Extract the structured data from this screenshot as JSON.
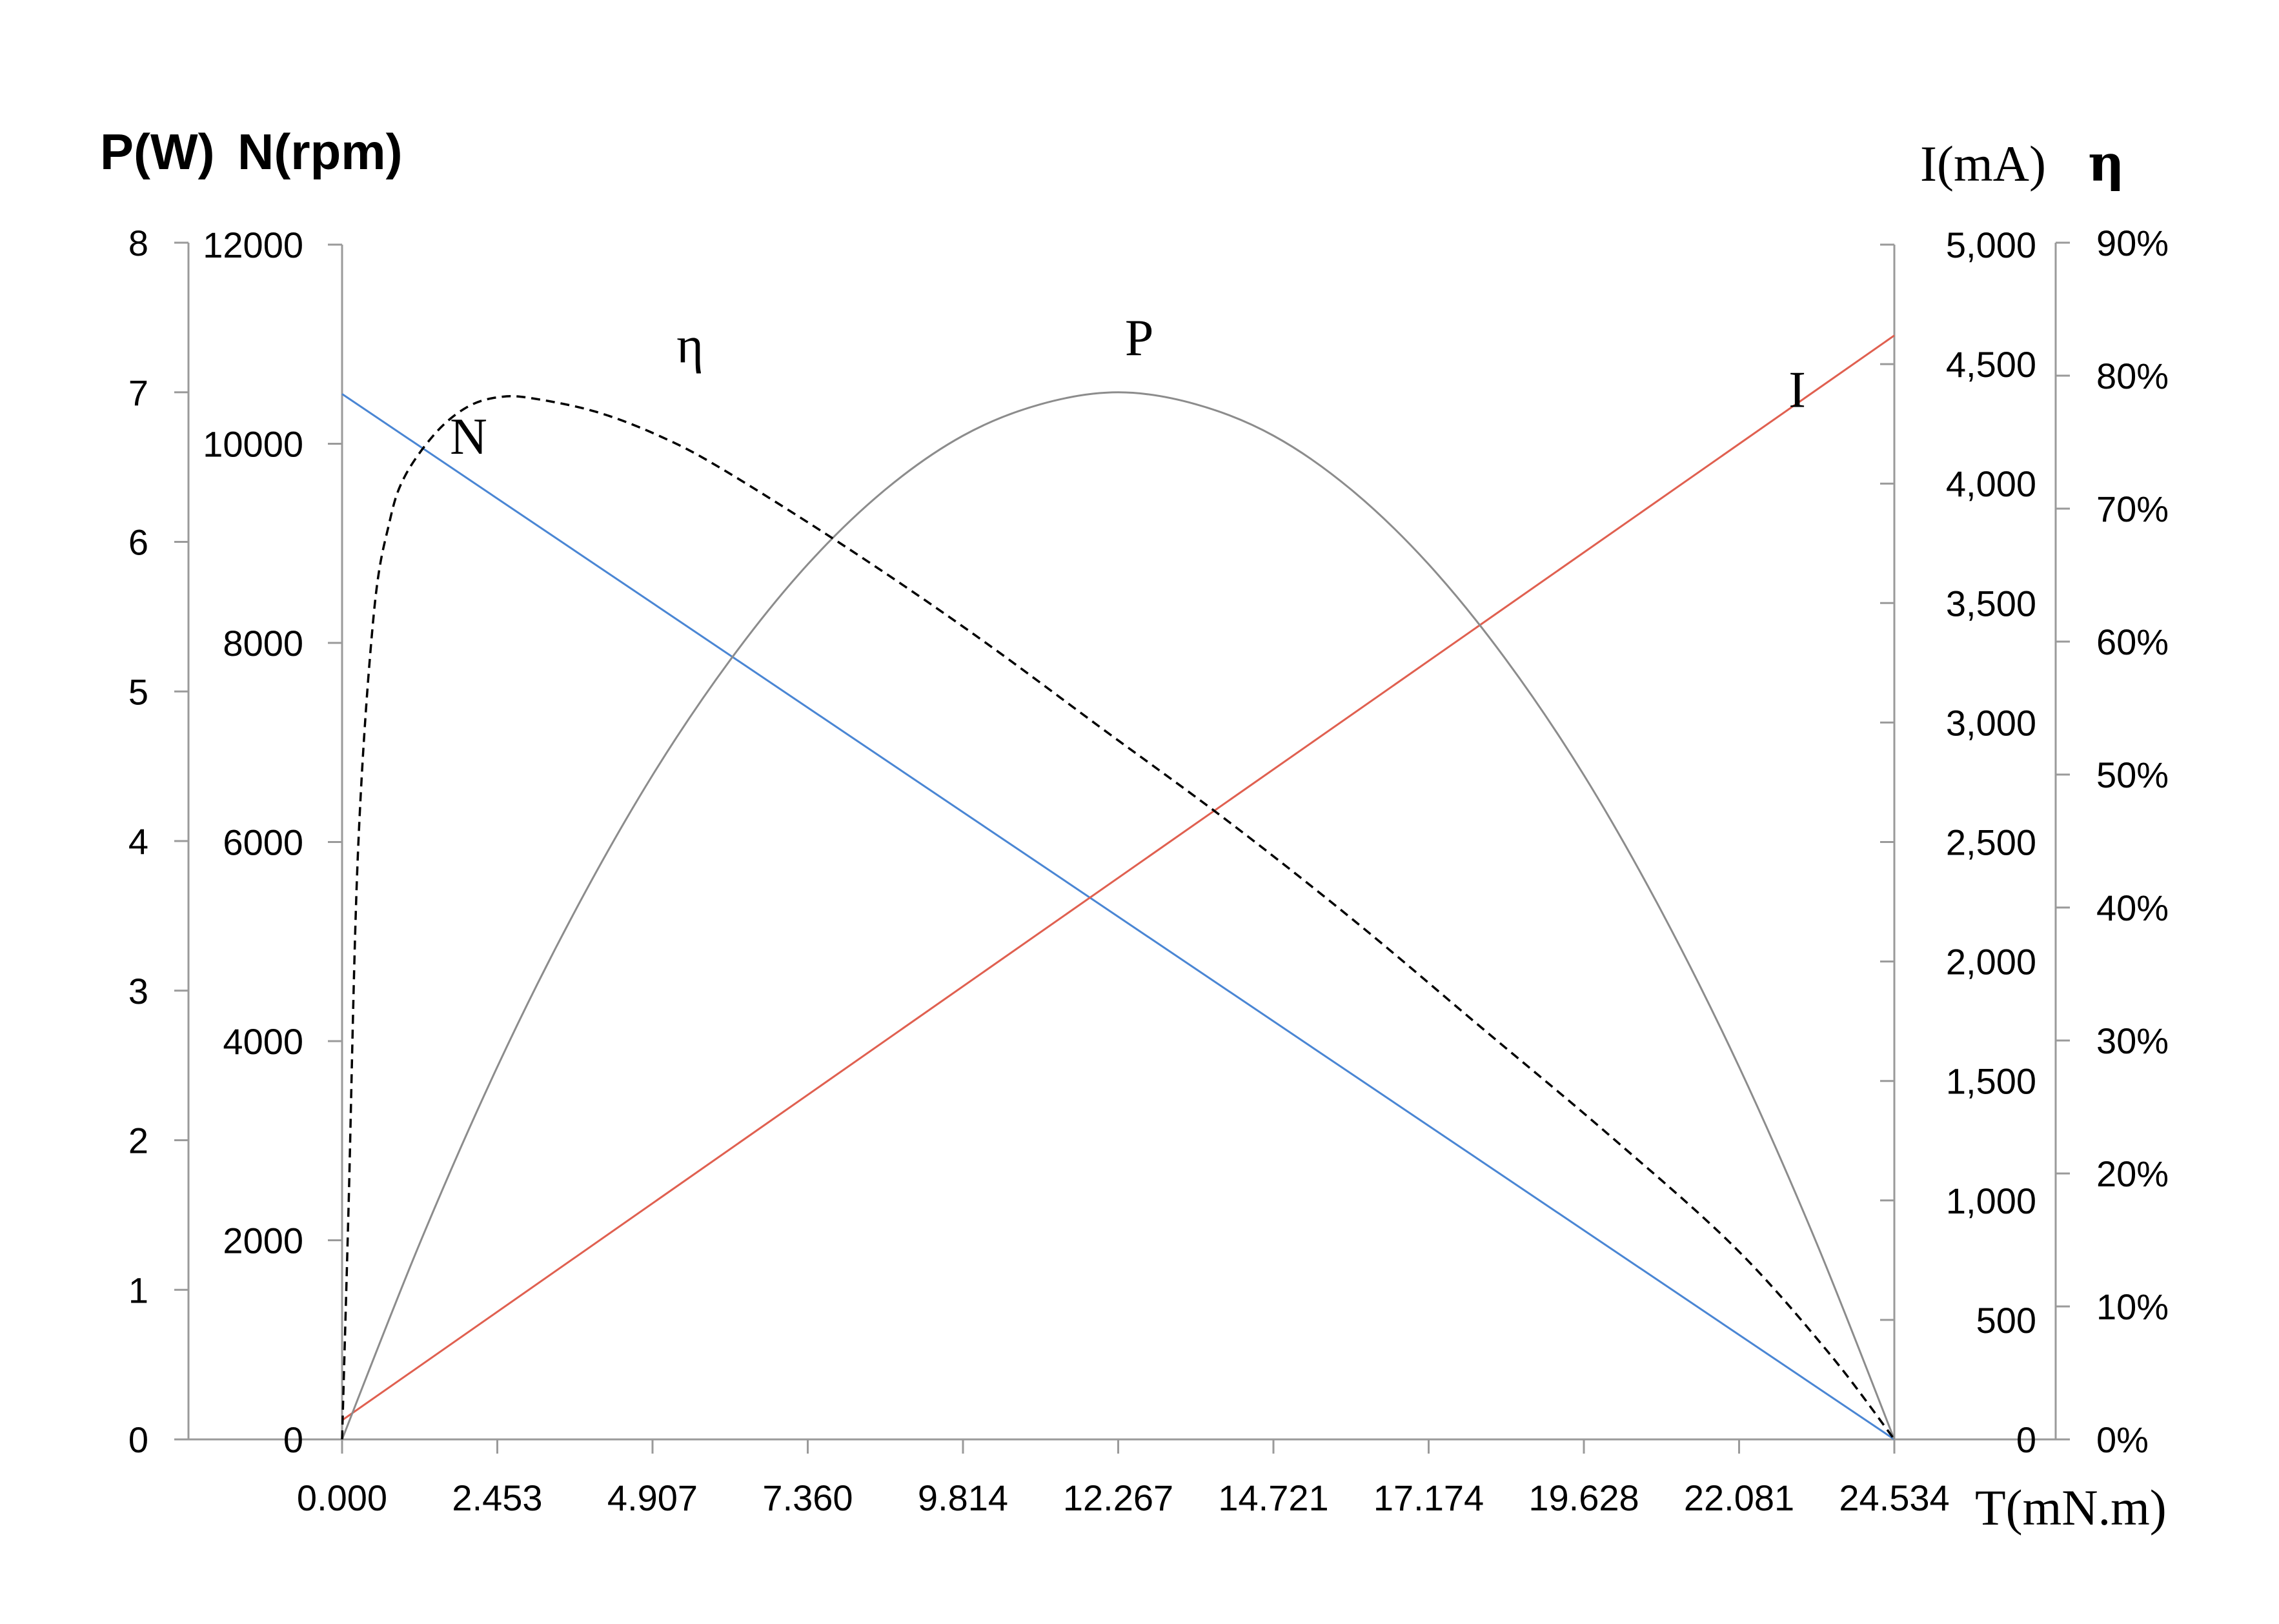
{
  "chart_data": {
    "type": "line",
    "x": {
      "label": "T(mN.m)",
      "ticks": [
        "0.000",
        "2.453",
        "4.907",
        "7.360",
        "9.814",
        "12.267",
        "14.721",
        "17.174",
        "19.628",
        "22.081",
        "24.534"
      ],
      "range": [
        0,
        24.534
      ]
    },
    "y_axes": {
      "P": {
        "label": "P(W)",
        "ticks": [
          "0",
          "1",
          "2",
          "3",
          "4",
          "5",
          "6",
          "7",
          "8"
        ],
        "range": [
          0,
          8
        ]
      },
      "N": {
        "label": "N(rpm)",
        "ticks": [
          "0",
          "2000",
          "4000",
          "6000",
          "8000",
          "10000",
          "12000"
        ],
        "range": [
          0,
          12000
        ]
      },
      "I": {
        "label": "I(mA)",
        "ticks": [
          "0",
          "500",
          "1,000",
          "1,500",
          "2,000",
          "2,500",
          "3,000",
          "3,500",
          "4,000",
          "4,500",
          "5,000"
        ],
        "range": [
          0,
          5000
        ]
      },
      "eta": {
        "label": "η",
        "ticks": [
          "0%",
          "10%",
          "20%",
          "30%",
          "40%",
          "50%",
          "60%",
          "70%",
          "80%",
          "90%"
        ],
        "range": [
          0,
          90
        ]
      }
    },
    "series": [
      {
        "name": "N",
        "axis": "N",
        "color": "#4a86d4",
        "dash": false,
        "x": [
          0,
          24.534
        ],
        "y": [
          10500,
          0
        ]
      },
      {
        "name": "I",
        "axis": "I",
        "color": "#e06050",
        "dash": false,
        "x": [
          0,
          24.534
        ],
        "y": [
          80,
          4620
        ]
      },
      {
        "name": "P",
        "axis": "P",
        "color": "#8c8c8c",
        "dash": false,
        "x": [
          0,
          1.227,
          2.453,
          3.68,
          4.907,
          6.134,
          7.36,
          8.587,
          9.814,
          11.04,
          12.267,
          13.494,
          14.721,
          15.948,
          17.174,
          18.401,
          19.628,
          20.854,
          22.081,
          23.308,
          24.534
        ],
        "y": [
          0,
          1.31,
          2.49,
          3.53,
          4.44,
          5.21,
          5.85,
          6.35,
          6.71,
          6.92,
          7.0,
          6.92,
          6.71,
          6.35,
          5.85,
          5.21,
          4.44,
          3.53,
          2.49,
          1.31,
          0
        ]
      },
      {
        "name": "η",
        "axis": "eta",
        "color": "#000000",
        "dash": true,
        "x": [
          0,
          0.1,
          0.25,
          0.5,
          0.75,
          1.0,
          1.5,
          2.0,
          2.5,
          3.0,
          4.0,
          5.0,
          6.0,
          8.0,
          10.0,
          12.0,
          14.0,
          16.0,
          18.0,
          20.0,
          22.0,
          23.5,
          24.534
        ],
        "y": [
          0,
          17,
          44,
          62,
          69,
          72.5,
          75.8,
          77.7,
          78.4,
          78.3,
          77.3,
          75.5,
          73,
          67,
          60.5,
          53.5,
          46.5,
          39,
          31,
          23,
          14.5,
          6.5,
          0
        ]
      }
    ],
    "curve_labels": [
      {
        "text": "N",
        "x": 2.0,
        "y_axis": "N",
        "y": 9900
      },
      {
        "text": "η",
        "x": 5.5,
        "y_axis": "eta",
        "y": 81
      },
      {
        "text": "P",
        "x": 12.6,
        "y_axis": "P",
        "y": 7.25
      },
      {
        "text": "I",
        "x": 23.0,
        "y_axis": "I",
        "y": 4320
      }
    ]
  }
}
